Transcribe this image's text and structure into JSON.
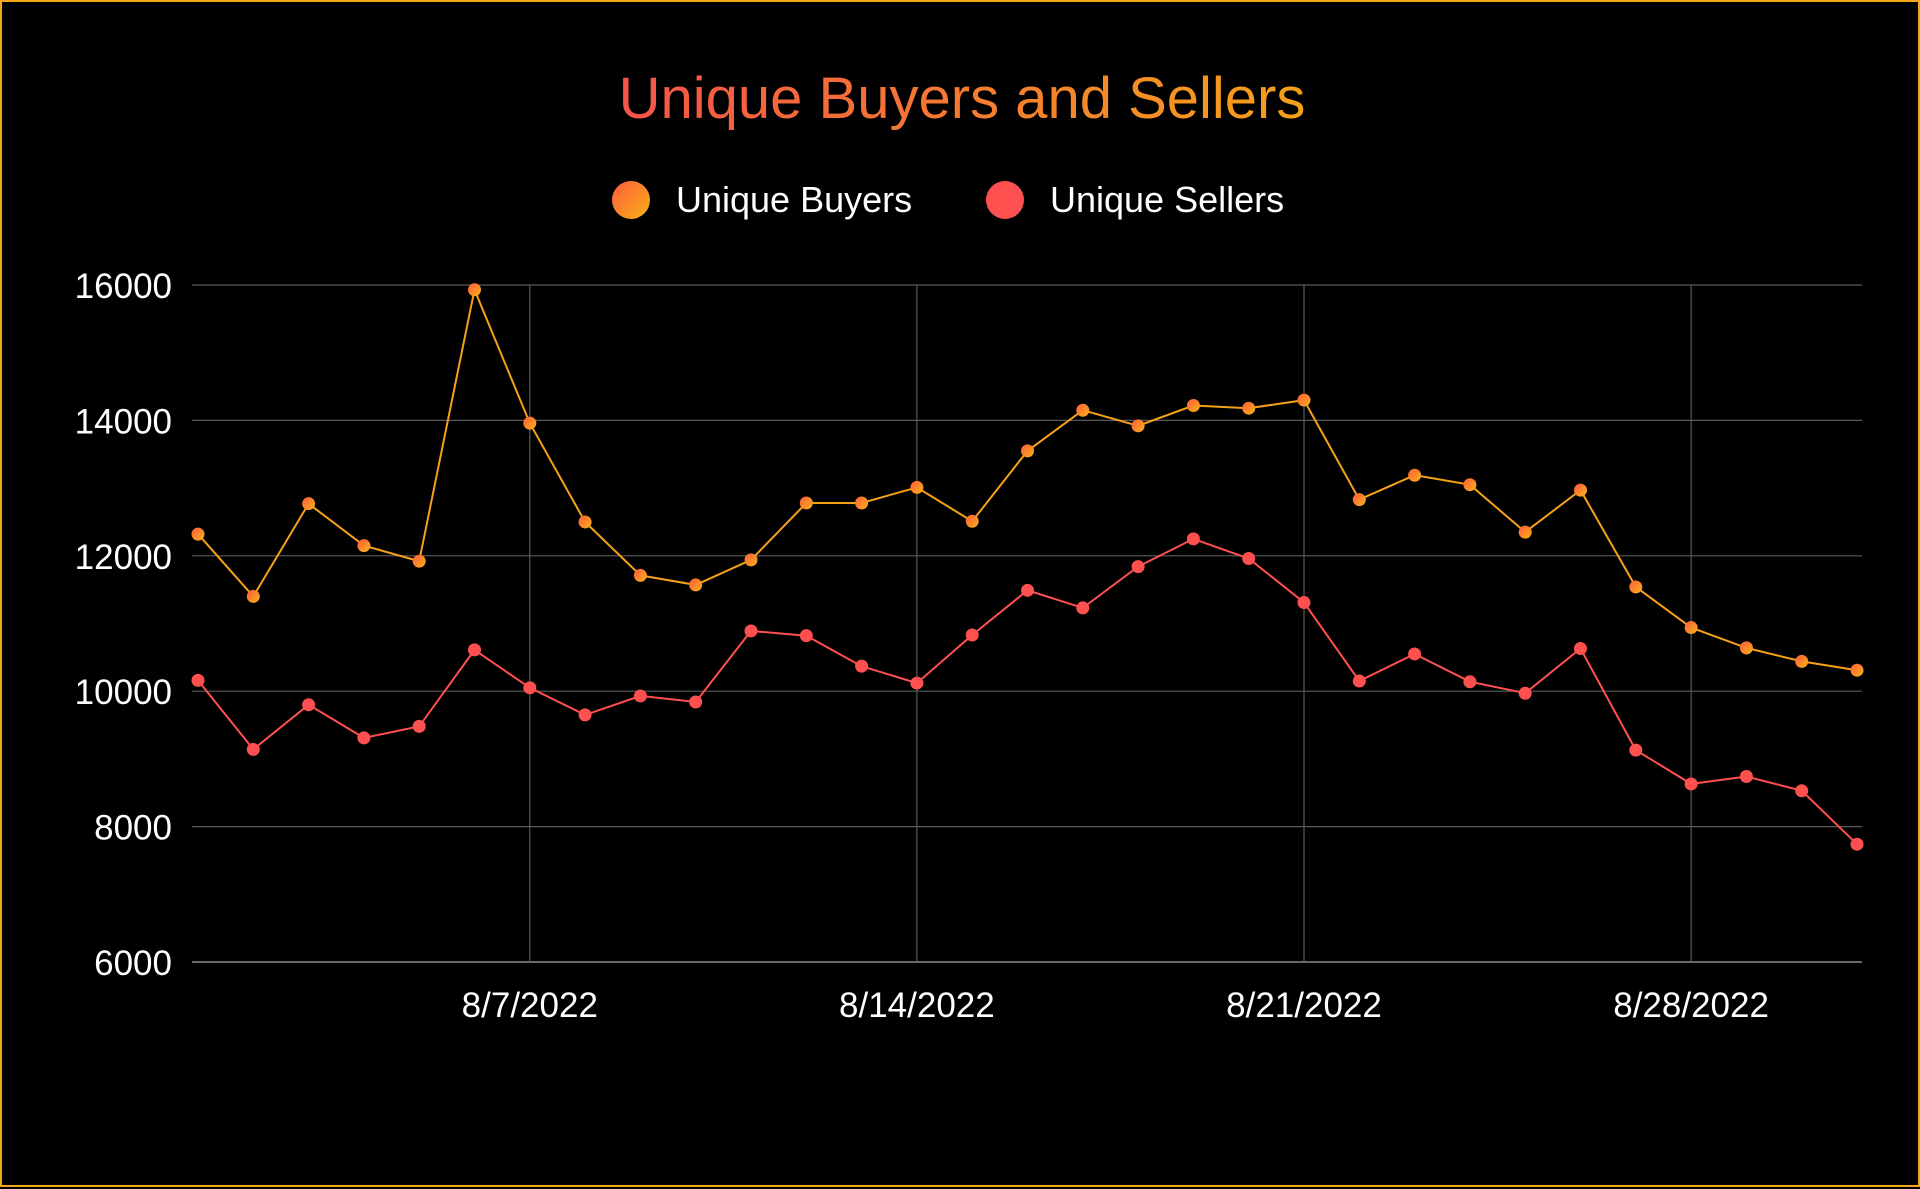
{
  "chart_data": {
    "type": "line",
    "title": "Unique Buyers and Sellers",
    "xlabel": "",
    "ylabel": "",
    "x_start": "8/1/2022",
    "x_end": "8/31/2022",
    "x_ticks": [
      "8/7/2022",
      "8/14/2022",
      "8/21/2022",
      "8/28/2022"
    ],
    "y_ticks": [
      6000,
      8000,
      10000,
      12000,
      14000,
      16000
    ],
    "ylim": [
      6000,
      16000
    ],
    "grid": true,
    "legend_position": "top-center",
    "series": [
      {
        "name": "Unique Buyers",
        "color": "#f5a11a",
        "values": [
          12320,
          11400,
          12770,
          12150,
          11920,
          15930,
          13960,
          12500,
          11710,
          11570,
          11940,
          12780,
          12780,
          13010,
          12510,
          13550,
          14150,
          13920,
          14220,
          14180,
          14300,
          12830,
          13190,
          13050,
          12350,
          12970,
          11540,
          10940,
          10640,
          10440,
          10310
        ]
      },
      {
        "name": "Unique Sellers",
        "color": "#ff5050",
        "values": [
          10160,
          9140,
          9800,
          9310,
          9480,
          10610,
          10050,
          9650,
          9930,
          9840,
          10890,
          10820,
          10370,
          10120,
          10830,
          11490,
          11230,
          11840,
          12250,
          11960,
          11310,
          10150,
          10550,
          10140,
          9970,
          10630,
          9130,
          8630,
          8740,
          8530,
          7740
        ]
      }
    ]
  }
}
